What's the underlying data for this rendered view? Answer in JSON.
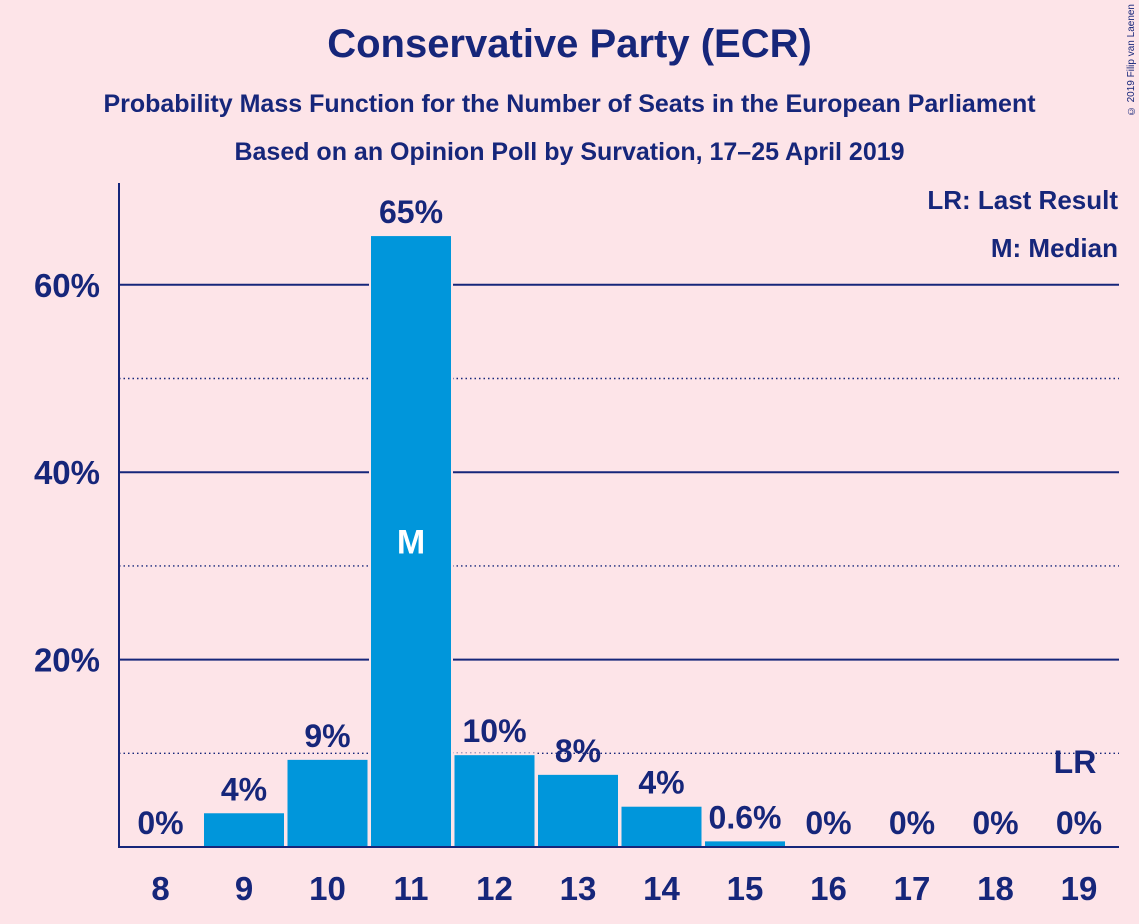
{
  "title": "Conservative Party (ECR)",
  "subtitle1": "Probability Mass Function for the Number of Seats in the European Parliament",
  "subtitle2": "Based on an Opinion Poll by Survation, 17–25 April 2019",
  "copyright": "© 2019 Filip van Laenen",
  "legend": {
    "lr": "LR: Last Result",
    "median": "M: Median"
  },
  "colors": {
    "background": "#fde4e8",
    "bar": "#0096db",
    "text": "#16267a"
  },
  "chart_data": {
    "type": "bar",
    "title": "Conservative Party (ECR)",
    "categories": [
      "8",
      "9",
      "10",
      "11",
      "12",
      "13",
      "14",
      "15",
      "16",
      "17",
      "18",
      "19"
    ],
    "values": [
      0,
      3.6,
      9.3,
      65.2,
      9.8,
      7.7,
      4.3,
      0.6,
      0,
      0,
      0,
      0
    ],
    "value_labels": [
      "0%",
      "4%",
      "9%",
      "65%",
      "10%",
      "8%",
      "4%",
      "0.6%",
      "0%",
      "0%",
      "0%",
      "0%"
    ],
    "ylim": [
      0,
      71
    ],
    "yticks": [
      20,
      40,
      60
    ],
    "ytick_labels": [
      "20%",
      "40%",
      "60%"
    ],
    "minor_gridlines": [
      10,
      30,
      50
    ],
    "median_category": "11",
    "median_label": "M",
    "last_result_category": "19",
    "last_result_label": "LR",
    "legend_placement": "top-right",
    "grid": true
  }
}
